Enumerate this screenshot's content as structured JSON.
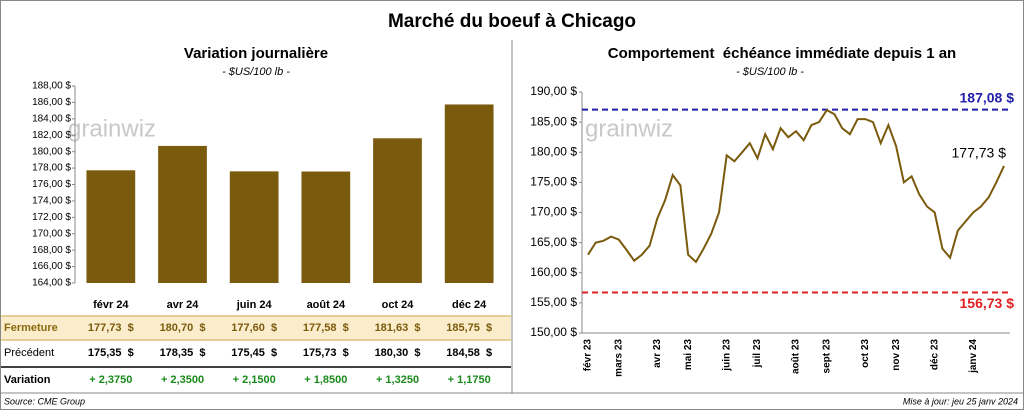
{
  "title": "Marché du boeuf à Chicago",
  "watermark": "grainwiz",
  "source": "Source: CME Group",
  "updated": "Mise à jour: jeu 25 janv 2024",
  "chart_data": [
    {
      "type": "bar",
      "title": "Variation journalière",
      "subtitle": "- $US/100 lb -",
      "categories": [
        "févr 24",
        "avr 24",
        "juin 24",
        "août 24",
        "oct 24",
        "déc 24"
      ],
      "values": [
        177.73,
        180.7,
        177.6,
        177.58,
        181.63,
        185.75
      ],
      "color": "#7a5a0c",
      "ylim": [
        164,
        188
      ],
      "yticks": [
        {
          "value": 164,
          "label": "164,00 $"
        },
        {
          "value": 166,
          "label": "166,00 $"
        },
        {
          "value": 168,
          "label": "168,00 $"
        },
        {
          "value": 170,
          "label": "170,00 $"
        },
        {
          "value": 172,
          "label": "172,00 $"
        },
        {
          "value": 174,
          "label": "174,00 $"
        },
        {
          "value": 176,
          "label": "176,00 $"
        },
        {
          "value": 178,
          "label": "178,00 $"
        },
        {
          "value": 180,
          "label": "180,00 $"
        },
        {
          "value": 182,
          "label": "182,00 $"
        },
        {
          "value": 184,
          "label": "184,00 $"
        },
        {
          "value": 186,
          "label": "186,00 $"
        },
        {
          "value": 188,
          "label": "188,00 $"
        }
      ]
    },
    {
      "type": "line",
      "title": "Comportement  échéance immédiate depuis 1 an",
      "subtitle": "- $US/100 lb -",
      "categories": [
        "févr 23",
        null,
        null,
        null,
        "mars 23",
        null,
        null,
        null,
        null,
        "avr 23",
        null,
        null,
        null,
        "mai 23",
        null,
        null,
        null,
        null,
        "juin 23",
        null,
        null,
        null,
        "juil 23",
        null,
        null,
        null,
        null,
        "août 23",
        null,
        null,
        null,
        "sept 23",
        null,
        null,
        null,
        null,
        "oct 23",
        null,
        null,
        null,
        "nov 23",
        null,
        null,
        null,
        null,
        "déc 23",
        null,
        null,
        null,
        null,
        "janv 24",
        null,
        null,
        null,
        null
      ],
      "series": [
        {
          "name": "Échéance immédiate",
          "color": "#7a5a0c",
          "values": [
            163,
            165,
            165.3,
            166,
            165.5,
            163.8,
            162,
            163,
            164.5,
            169,
            172,
            176.2,
            174.5,
            163,
            161.8,
            164,
            166.5,
            170,
            179.5,
            178.5,
            180,
            181.5,
            179,
            183,
            180.5,
            184,
            182.5,
            183.5,
            182,
            184.5,
            185,
            187,
            186.3,
            184,
            183,
            185.5,
            185.5,
            185,
            181.5,
            184.5,
            181,
            175,
            176,
            173,
            171,
            170,
            164,
            162.5,
            167,
            168.5,
            170,
            171,
            172.5,
            175,
            177.73
          ]
        }
      ],
      "ylim": [
        150,
        190
      ],
      "yticks": [
        {
          "value": 150,
          "label": "150,00 $"
        },
        {
          "value": 155,
          "label": "155,00 $"
        },
        {
          "value": 160,
          "label": "160,00 $"
        },
        {
          "value": 165,
          "label": "165,00 $"
        },
        {
          "value": 170,
          "label": "170,00 $"
        },
        {
          "value": 175,
          "label": "175,00 $"
        },
        {
          "value": 180,
          "label": "180,00 $"
        },
        {
          "value": 185,
          "label": "185,00 $"
        },
        {
          "value": 190,
          "label": "190,00 $"
        }
      ],
      "reference_lines": [
        {
          "value": 187.08,
          "label": "187,08 $",
          "color": "#1f1fa8"
        },
        {
          "value": 156.73,
          "label": "156,73 $",
          "color": "#e02020"
        }
      ],
      "annotations": [
        {
          "text": "177,73 $"
        }
      ]
    }
  ],
  "table": {
    "rows": [
      [
        "Fermeture",
        "177,73  $",
        "180,70  $",
        "177,60  $",
        "177,58  $",
        "181,63  $",
        "185,75  $"
      ],
      [
        "Précédent",
        "175,35  $",
        "178,35  $",
        "175,45  $",
        "175,73  $",
        "180,30  $",
        "184,58  $"
      ],
      [
        "Variation",
        "+ 2,3750",
        "+ 2,3500",
        "+ 2,1500",
        "+ 1,8500",
        "+ 1,3250",
        "+ 1,1750"
      ]
    ]
  }
}
